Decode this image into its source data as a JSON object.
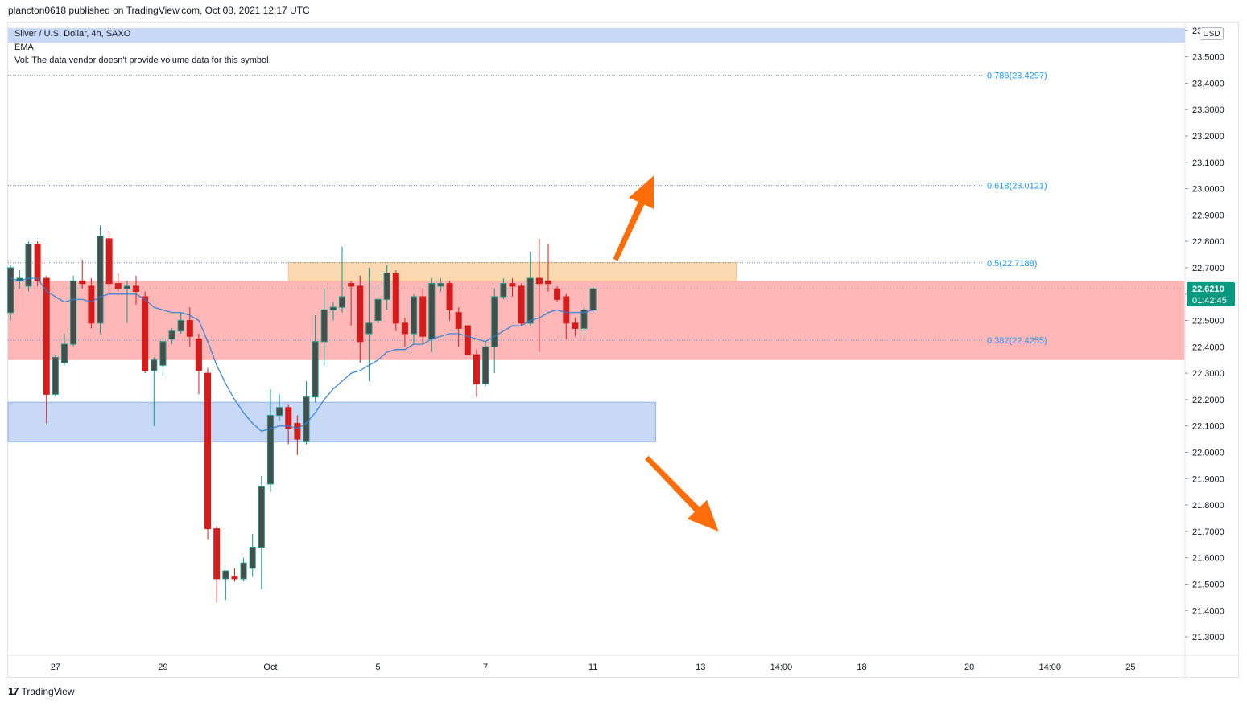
{
  "header": {
    "publish_line": "plancton0618 published on TradingView.com, Oct 08, 2021 12:17 UTC"
  },
  "legend": {
    "symbol_line": "Silver / U.S. Dollar, 4h, SAXO",
    "indicator_ema": "EMA",
    "volume_note": "Vol: The data vendor doesn't provide volume data for this symbol."
  },
  "currency_badge": "USD",
  "footer": {
    "brand": "TradingView",
    "logo_glyph": "17"
  },
  "colors": {
    "bullish": "#0e9981",
    "bullish_body": "#4b4b4b",
    "bearish": "#d41c1c",
    "ema": "#2f7fd6",
    "fib_text": "#2196f3",
    "resistance_zone": "#ffb7b7",
    "supply_zone": "#fbd9b0",
    "support_zone": "#c7d9f7",
    "arrow": "#ff6d0a",
    "price_label_bg": "#089981"
  },
  "chart_data": {
    "type": "candlestick",
    "title": "Silver / U.S. Dollar, 4h, SAXO",
    "ylim": [
      21.23,
      23.63
    ],
    "y_ticks": [
      "21.3000",
      "21.4000",
      "21.5000",
      "21.6000",
      "21.7000",
      "21.8000",
      "21.9000",
      "22.0000",
      "22.1000",
      "22.2000",
      "22.3000",
      "22.4000",
      "22.5000",
      "22.6000",
      "22.7000",
      "22.8000",
      "22.9000",
      "23.0000",
      "23.1000",
      "23.2000",
      "23.3000",
      "23.4000",
      "23.5000",
      "23.6000"
    ],
    "x_ticks": [
      {
        "label": "27",
        "i": 5
      },
      {
        "label": "29",
        "i": 17
      },
      {
        "label": "Oct",
        "i": 29
      },
      {
        "label": "5",
        "i": 41
      },
      {
        "label": "7",
        "i": 53
      },
      {
        "label": "11",
        "i": 65
      },
      {
        "label": "13",
        "i": 77
      },
      {
        "label": "14:00",
        "i": 86
      },
      {
        "label": "18",
        "i": 95
      },
      {
        "label": "20",
        "i": 107
      },
      {
        "label": "14:00",
        "i": 116
      },
      {
        "label": "25",
        "i": 125
      }
    ],
    "last_price": {
      "value": 22.621,
      "label": "22.6210",
      "countdown": "01:42:45"
    },
    "fib_levels": [
      {
        "label": "0.786(23.4297)",
        "value": 23.4297
      },
      {
        "label": "0.618(23.0121)",
        "value": 23.0121
      },
      {
        "label": "0.5(22.7188)",
        "value": 22.7188
      },
      {
        "label": "0.382(22.4255)",
        "value": 22.4255
      }
    ],
    "zones": [
      {
        "name": "resistance-zone",
        "top": 22.65,
        "bottom": 22.35,
        "i_start": -1,
        "i_end": 131,
        "color": "resistance_zone"
      },
      {
        "name": "supply-zone",
        "top": 22.72,
        "bottom": 22.65,
        "i_start": 31,
        "i_end": 81,
        "color": "supply_zone"
      },
      {
        "name": "support-zone",
        "top": 22.19,
        "bottom": 22.04,
        "i_start": -1,
        "i_end": 72,
        "color": "support_zone"
      }
    ],
    "arrows": [
      {
        "name": "up-arrow",
        "from": {
          "i": 67.5,
          "v": 22.73
        },
        "to": {
          "i": 71.8,
          "v": 23.05
        }
      },
      {
        "name": "down-arrow",
        "from": {
          "i": 71,
          "v": 21.98
        },
        "to": {
          "i": 79,
          "v": 21.7
        }
      }
    ],
    "candles": [
      {
        "o": 22.53,
        "h": 22.71,
        "l": 22.5,
        "c": 22.7
      },
      {
        "o": 22.65,
        "h": 22.69,
        "l": 22.62,
        "c": 22.66
      },
      {
        "o": 22.63,
        "h": 22.8,
        "l": 22.61,
        "c": 22.79
      },
      {
        "o": 22.79,
        "h": 22.8,
        "l": 22.63,
        "c": 22.65
      },
      {
        "o": 22.66,
        "h": 22.67,
        "l": 22.11,
        "c": 22.22
      },
      {
        "o": 22.22,
        "h": 22.37,
        "l": 22.21,
        "c": 22.36
      },
      {
        "o": 22.34,
        "h": 22.45,
        "l": 22.33,
        "c": 22.41
      },
      {
        "o": 22.41,
        "h": 22.67,
        "l": 22.4,
        "c": 22.65
      },
      {
        "o": 22.65,
        "h": 22.73,
        "l": 22.62,
        "c": 22.64
      },
      {
        "o": 22.63,
        "h": 22.66,
        "l": 22.47,
        "c": 22.49
      },
      {
        "o": 22.49,
        "h": 22.86,
        "l": 22.45,
        "c": 22.82
      },
      {
        "o": 22.81,
        "h": 22.84,
        "l": 22.6,
        "c": 22.64
      },
      {
        "o": 22.64,
        "h": 22.68,
        "l": 22.61,
        "c": 22.62
      },
      {
        "o": 22.62,
        "h": 22.65,
        "l": 22.49,
        "c": 22.63
      },
      {
        "o": 22.63,
        "h": 22.67,
        "l": 22.56,
        "c": 22.61
      },
      {
        "o": 22.59,
        "h": 22.61,
        "l": 22.3,
        "c": 22.31
      },
      {
        "o": 22.31,
        "h": 22.36,
        "l": 22.1,
        "c": 22.35
      },
      {
        "o": 22.33,
        "h": 22.44,
        "l": 22.29,
        "c": 22.42
      },
      {
        "o": 22.43,
        "h": 22.47,
        "l": 22.41,
        "c": 22.46
      },
      {
        "o": 22.46,
        "h": 22.53,
        "l": 22.45,
        "c": 22.5
      },
      {
        "o": 22.5,
        "h": 22.55,
        "l": 22.4,
        "c": 22.44
      },
      {
        "o": 22.43,
        "h": 22.45,
        "l": 22.22,
        "c": 22.31
      },
      {
        "o": 22.3,
        "h": 22.32,
        "l": 21.67,
        "c": 21.71
      },
      {
        "o": 21.71,
        "h": 21.72,
        "l": 21.43,
        "c": 21.52
      },
      {
        "o": 21.52,
        "h": 21.55,
        "l": 21.44,
        "c": 21.55
      },
      {
        "o": 21.53,
        "h": 21.56,
        "l": 21.51,
        "c": 21.52
      },
      {
        "o": 21.52,
        "h": 21.6,
        "l": 21.51,
        "c": 21.58
      },
      {
        "o": 21.56,
        "h": 21.69,
        "l": 21.53,
        "c": 21.64
      },
      {
        "o": 21.64,
        "h": 21.91,
        "l": 21.48,
        "c": 21.87
      },
      {
        "o": 21.88,
        "h": 22.24,
        "l": 21.85,
        "c": 22.14
      },
      {
        "o": 22.14,
        "h": 22.22,
        "l": 22.12,
        "c": 22.17
      },
      {
        "o": 22.17,
        "h": 22.18,
        "l": 22.03,
        "c": 22.09
      },
      {
        "o": 22.11,
        "h": 22.14,
        "l": 21.99,
        "c": 22.05
      },
      {
        "o": 22.04,
        "h": 22.27,
        "l": 22.03,
        "c": 22.21
      },
      {
        "o": 22.21,
        "h": 22.52,
        "l": 22.19,
        "c": 22.42
      },
      {
        "o": 22.42,
        "h": 22.62,
        "l": 22.33,
        "c": 22.54
      },
      {
        "o": 22.54,
        "h": 22.57,
        "l": 22.5,
        "c": 22.55
      },
      {
        "o": 22.55,
        "h": 22.78,
        "l": 22.53,
        "c": 22.59
      },
      {
        "o": 22.64,
        "h": 22.65,
        "l": 22.48,
        "c": 22.63
      },
      {
        "o": 22.63,
        "h": 22.67,
        "l": 22.34,
        "c": 22.42
      },
      {
        "o": 22.45,
        "h": 22.7,
        "l": 22.27,
        "c": 22.49
      },
      {
        "o": 22.5,
        "h": 22.64,
        "l": 22.49,
        "c": 22.58
      },
      {
        "o": 22.58,
        "h": 22.71,
        "l": 22.54,
        "c": 22.68
      },
      {
        "o": 22.68,
        "h": 22.69,
        "l": 22.46,
        "c": 22.49
      },
      {
        "o": 22.49,
        "h": 22.51,
        "l": 22.4,
        "c": 22.45
      },
      {
        "o": 22.45,
        "h": 22.6,
        "l": 22.41,
        "c": 22.59
      },
      {
        "o": 22.59,
        "h": 22.62,
        "l": 22.41,
        "c": 22.44
      },
      {
        "o": 22.43,
        "h": 22.66,
        "l": 22.38,
        "c": 22.64
      },
      {
        "o": 22.63,
        "h": 22.66,
        "l": 22.61,
        "c": 22.64
      },
      {
        "o": 22.64,
        "h": 22.65,
        "l": 22.5,
        "c": 22.54
      },
      {
        "o": 22.53,
        "h": 22.55,
        "l": 22.4,
        "c": 22.47
      },
      {
        "o": 22.48,
        "h": 22.48,
        "l": 22.37,
        "c": 22.37
      },
      {
        "o": 22.37,
        "h": 22.39,
        "l": 22.21,
        "c": 22.26
      },
      {
        "o": 22.26,
        "h": 22.42,
        "l": 22.25,
        "c": 22.4
      },
      {
        "o": 22.4,
        "h": 22.62,
        "l": 22.3,
        "c": 22.59
      },
      {
        "o": 22.59,
        "h": 22.66,
        "l": 22.58,
        "c": 22.64
      },
      {
        "o": 22.64,
        "h": 22.66,
        "l": 22.59,
        "c": 22.63
      },
      {
        "o": 22.63,
        "h": 22.64,
        "l": 22.48,
        "c": 22.49
      },
      {
        "o": 22.49,
        "h": 22.76,
        "l": 22.48,
        "c": 22.66
      },
      {
        "o": 22.66,
        "h": 22.81,
        "l": 22.38,
        "c": 22.64
      },
      {
        "o": 22.65,
        "h": 22.79,
        "l": 22.61,
        "c": 22.64
      },
      {
        "o": 22.62,
        "h": 22.63,
        "l": 22.57,
        "c": 22.58
      },
      {
        "o": 22.59,
        "h": 22.6,
        "l": 22.43,
        "c": 22.49
      },
      {
        "o": 22.49,
        "h": 22.51,
        "l": 22.44,
        "c": 22.47
      },
      {
        "o": 22.47,
        "h": 22.55,
        "l": 22.44,
        "c": 22.54
      },
      {
        "o": 22.54,
        "h": 22.63,
        "l": 22.53,
        "c": 22.62
      }
    ],
    "ema": [
      22.66,
      22.65,
      22.66,
      22.66,
      22.61,
      22.59,
      22.57,
      22.58,
      22.58,
      22.57,
      22.59,
      22.6,
      22.6,
      22.6,
      22.6,
      22.58,
      22.55,
      22.54,
      22.53,
      22.53,
      22.52,
      22.5,
      22.42,
      22.33,
      22.26,
      22.2,
      22.15,
      22.11,
      22.08,
      22.09,
      22.1,
      22.1,
      22.09,
      22.11,
      22.15,
      22.2,
      22.24,
      22.27,
      22.3,
      22.31,
      22.33,
      22.35,
      22.38,
      22.39,
      22.39,
      22.41,
      22.41,
      22.43,
      22.44,
      22.45,
      22.45,
      22.44,
      22.43,
      22.42,
      22.44,
      22.46,
      22.48,
      22.48,
      22.5,
      22.51,
      22.53,
      22.54,
      22.53,
      22.53,
      22.53,
      22.54
    ]
  }
}
